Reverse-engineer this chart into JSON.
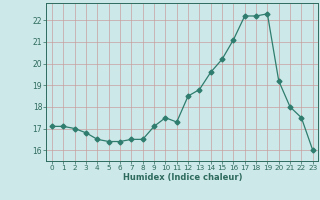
{
  "x": [
    0,
    1,
    2,
    3,
    4,
    5,
    6,
    7,
    8,
    9,
    10,
    11,
    12,
    13,
    14,
    15,
    16,
    17,
    18,
    19,
    20,
    21,
    22,
    23
  ],
  "y": [
    17.1,
    17.1,
    17.0,
    16.8,
    16.5,
    16.4,
    16.4,
    16.5,
    16.5,
    17.1,
    17.5,
    17.3,
    18.5,
    18.8,
    19.6,
    20.2,
    21.1,
    22.2,
    22.2,
    22.3,
    19.2,
    18.0,
    17.5,
    16.0
  ],
  "xlabel": "Humidex (Indice chaleur)",
  "line_color": "#2e7d6e",
  "marker": "D",
  "marker_size": 2.5,
  "bg_color": "#cde8e8",
  "grid_color": "#c8a0a0",
  "tick_label_color": "#2e6b5e",
  "axis_color": "#2e6b5e",
  "ylim": [
    15.5,
    22.8
  ],
  "yticks": [
    16,
    17,
    18,
    19,
    20,
    21,
    22
  ],
  "xlim": [
    -0.5,
    23.5
  ],
  "xticks": [
    0,
    1,
    2,
    3,
    4,
    5,
    6,
    7,
    8,
    9,
    10,
    11,
    12,
    13,
    14,
    15,
    16,
    17,
    18,
    19,
    20,
    21,
    22,
    23
  ]
}
